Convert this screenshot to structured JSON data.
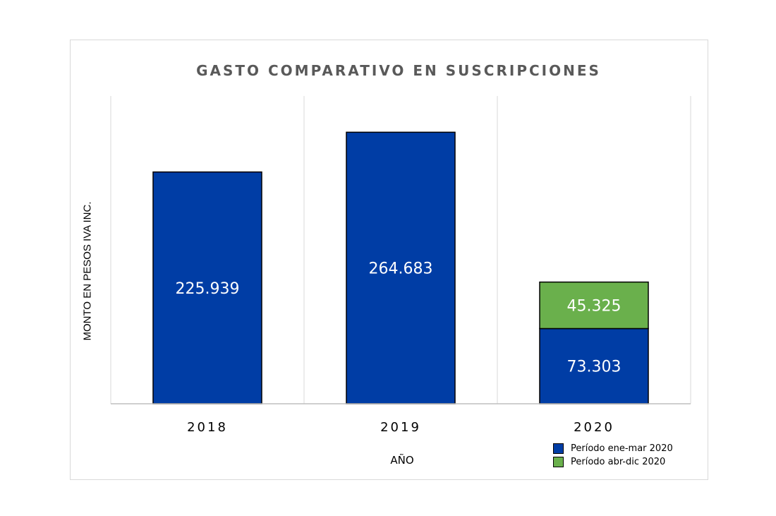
{
  "chart_data": {
    "type": "bar",
    "stacked": true,
    "title": "GASTO COMPARATIVO EN SUSCRIPCIONES",
    "xlabel": "AÑO",
    "ylabel": "MONTO EN PESOS IVA INC.",
    "categories": [
      "2018",
      "2019",
      "2020"
    ],
    "series": [
      {
        "name": "Período ene-mar 2020",
        "color": "#003da5",
        "values": [
          225939,
          264683,
          73303
        ],
        "labels": [
          "225.939",
          "264.683",
          "73.303"
        ]
      },
      {
        "name": "Período abr-dic 2020",
        "color": "#6ab04c",
        "values": [
          0,
          0,
          45325
        ],
        "labels": [
          "",
          "",
          "45.325"
        ]
      }
    ],
    "ylim": [
      0,
      300000
    ],
    "grid": "vertical",
    "legend_position": "bottom-right"
  }
}
